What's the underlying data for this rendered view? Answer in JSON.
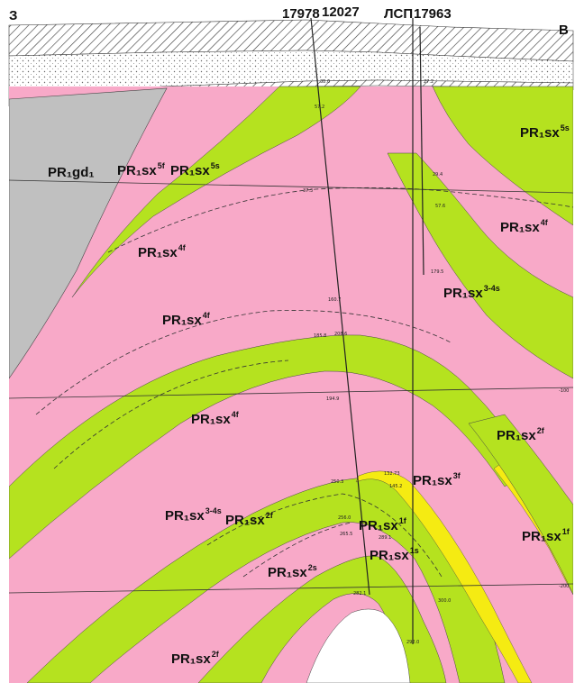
{
  "header": {
    "west": "З",
    "east": "В",
    "wells": [
      "17978",
      "12027",
      "ЛСП",
      "17963"
    ]
  },
  "colors": {
    "pink_unit": "#f8a9c8",
    "green_unit": "#b5e21f",
    "gray_unit": "#c0c0c0",
    "yellow_vein": "#f5eb12",
    "white": "#ffffff"
  },
  "units": [
    {
      "base": "PR₁gd₁",
      "sup": ""
    },
    {
      "base": "PR₁sx",
      "sup": "5f"
    },
    {
      "base": "PR₁sx",
      "sup": "5s"
    },
    {
      "base": "PR₁sx",
      "sup": "5s"
    },
    {
      "base": "PR₁sx",
      "sup": "4f"
    },
    {
      "base": "PR₁sx",
      "sup": "4f"
    },
    {
      "base": "PR₁sx",
      "sup": "4f"
    },
    {
      "base": "PR₁sx",
      "sup": "3-4s"
    },
    {
      "base": "PR₁sx",
      "sup": "4f"
    },
    {
      "base": "PR₁sx",
      "sup": "2f"
    },
    {
      "base": "PR₁sx",
      "sup": "3f"
    },
    {
      "base": "PR₁sx",
      "sup": "3-4s"
    },
    {
      "base": "PR₁sx",
      "sup": "2f"
    },
    {
      "base": "PR₁sx",
      "sup": "1f"
    },
    {
      "base": "PR₁sx",
      "sup": "1s"
    },
    {
      "base": "PR₁sx",
      "sup": "2s"
    },
    {
      "base": "PR₁sx",
      "sup": "1f"
    },
    {
      "base": "PR₁sx",
      "sup": "2f"
    }
  ],
  "depth_marks": [
    "38.0",
    "57.2",
    "27.2",
    "29.4",
    "37.3",
    "57.6",
    "179.5",
    "160.7",
    "185.8",
    "194.9",
    "250.3",
    "256.0",
    "265.5",
    "282.1",
    "289.1",
    "300.0",
    "132.73",
    "145.2",
    "208.6",
    "292.0"
  ],
  "ticks": [
    "-100",
    "-200"
  ]
}
